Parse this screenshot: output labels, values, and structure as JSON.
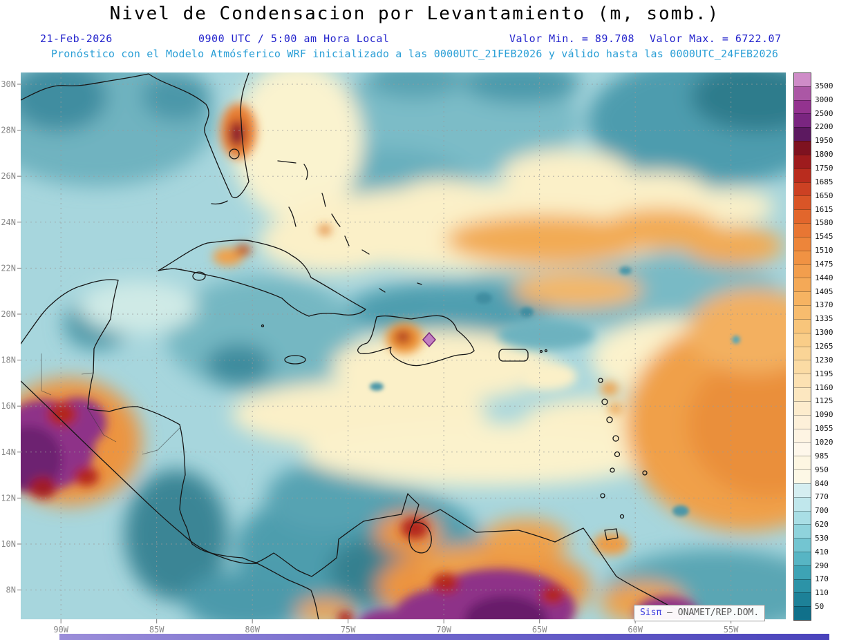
{
  "title": "Nivel de Condensacion por Levantamiento (m, somb.)",
  "header": {
    "date": "21-Feb-2026",
    "time": "0900 UTC / 5:00 am Hora Local",
    "min_label": "Valor Min. = 89.708",
    "max_label": "Valor Max. = 6722.07",
    "forecast": "Pronóstico con el Modelo Atmósferico WRF inicializado a las 0000UTC_21FEB2026 y válido hasta las 0000UTC_24FEB2026"
  },
  "map": {
    "lat_ticks": [
      "30N",
      "28N",
      "26N",
      "24N",
      "22N",
      "20N",
      "18N",
      "16N",
      "14N",
      "12N",
      "10N",
      "8N"
    ],
    "lon_ticks": [
      "90W",
      "85W",
      "80W",
      "75W",
      "70W",
      "65W",
      "60W",
      "55W"
    ]
  },
  "colorbar": {
    "labels": [
      "3500",
      "3000",
      "2500",
      "2200",
      "1950",
      "1800",
      "1750",
      "1685",
      "1650",
      "1615",
      "1580",
      "1545",
      "1510",
      "1475",
      "1440",
      "1405",
      "1370",
      "1335",
      "1300",
      "1265",
      "1230",
      "1195",
      "1160",
      "1125",
      "1090",
      "1055",
      "1020",
      "985",
      "950",
      "840",
      "770",
      "700",
      "620",
      "530",
      "410",
      "290",
      "170",
      "110",
      "50"
    ],
    "colors": [
      "#cf8cc8",
      "#ab57a5",
      "#93338f",
      "#7a2580",
      "#5c1960",
      "#7e1220",
      "#9e1b1d",
      "#b92c1e",
      "#cc4123",
      "#d95527",
      "#e2662c",
      "#e87633",
      "#ed853a",
      "#f09243",
      "#f29e4d",
      "#f4a957",
      "#f6b362",
      "#f7bc6e",
      "#f8c57b",
      "#f9cd88",
      "#fad496",
      "#fbdba4",
      "#fce1b2",
      "#fce7c0",
      "#fdeccd",
      "#fdf0d9",
      "#fef4e3",
      "#fef7eb",
      "#fdf6e2",
      "#fdf8e6",
      "#d5eef1",
      "#c0e7ec",
      "#a9dee5",
      "#8fd3dc",
      "#73c5d1",
      "#57b5c4",
      "#3da3b5",
      "#2c93a7",
      "#1d8198",
      "#10708a"
    ]
  },
  "watermark": {
    "brand": "Sisπ",
    "sep": "–",
    "org": "ONAMET/REP.DOM."
  },
  "chart_data": {
    "type": "heatmap",
    "title": "Nivel de Condensacion por Levantamiento (m, somb.)",
    "units": "m",
    "value_min": 89.708,
    "value_max": 6722.07,
    "date": "21-Feb-2026",
    "valid_time": "0900 UTC / 5:00 am Hora Local",
    "model": "WRF",
    "initialized": "0000UTC_21FEB2026",
    "valid_until": "0000UTC_24FEB2026",
    "x_ticks": [
      "90W",
      "85W",
      "80W",
      "75W",
      "70W",
      "65W",
      "60W",
      "55W"
    ],
    "y_ticks": [
      "30N",
      "28N",
      "26N",
      "24N",
      "22N",
      "20N",
      "18N",
      "16N",
      "14N",
      "12N",
      "10N",
      "8N"
    ],
    "contour_levels_m": [
      50,
      110,
      170,
      290,
      410,
      530,
      620,
      700,
      770,
      840,
      950,
      985,
      1020,
      1055,
      1090,
      1125,
      1160,
      1195,
      1230,
      1265,
      1300,
      1335,
      1370,
      1405,
      1440,
      1475,
      1510,
      1545,
      1580,
      1615,
      1650,
      1685,
      1750,
      1800,
      1950,
      2200,
      2500,
      3000,
      3500
    ],
    "legend_position": "right",
    "grid": true,
    "high_value_regions": [
      "Guatemala-Chiapas highlands (purple >2200 m)",
      "interior northern South America along bottom edge (purple >2200 m)",
      "central Florida spot (red ~1800 m)",
      "Hispaniola interior spot (orange-red, purple diamond marker)",
      "broad orange area east of Lesser Antilles (~1300-1600 m)"
    ],
    "low_value_regions": [
      "Gulf of Mexico (teal 200-700 m)",
      "northwest and southwest Caribbean (teal 200-700 m)",
      "Atlantic north of 26N and top-right corner (dark teal <300 m)"
    ]
  }
}
